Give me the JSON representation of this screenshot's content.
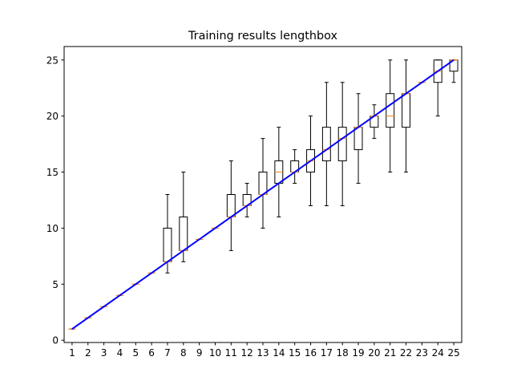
{
  "chart_data": {
    "type": "box",
    "title": "Training results lengthbox",
    "xlabel": "",
    "ylabel": "",
    "categories": [
      "1",
      "2",
      "3",
      "4",
      "5",
      "6",
      "7",
      "8",
      "9",
      "10",
      "11",
      "12",
      "13",
      "14",
      "15",
      "16",
      "17",
      "18",
      "19",
      "20",
      "21",
      "22",
      "23",
      "24",
      "25"
    ],
    "y_ticks": [
      0,
      5,
      10,
      15,
      20,
      25
    ],
    "ylim": [
      -0.2,
      26.2
    ],
    "grid": false,
    "boxes": [
      {
        "x": 1,
        "whislo": 1,
        "q1": 1,
        "med": 1,
        "q3": 1,
        "whishi": 1
      },
      {
        "x": 2,
        "whislo": 2,
        "q1": 2,
        "med": 2,
        "q3": 2,
        "whishi": 2
      },
      {
        "x": 3,
        "whislo": 3,
        "q1": 3,
        "med": 3,
        "q3": 3,
        "whishi": 3
      },
      {
        "x": 4,
        "whislo": 4,
        "q1": 4,
        "med": 4,
        "q3": 4,
        "whishi": 4
      },
      {
        "x": 5,
        "whislo": 5,
        "q1": 5,
        "med": 5,
        "q3": 5,
        "whishi": 5
      },
      {
        "x": 6,
        "whislo": 6,
        "q1": 6,
        "med": 6,
        "q3": 6,
        "whishi": 6
      },
      {
        "x": 7,
        "whislo": 6,
        "q1": 7,
        "med": 7,
        "q3": 10,
        "whishi": 13
      },
      {
        "x": 8,
        "whislo": 7,
        "q1": 8,
        "med": 8,
        "q3": 11,
        "whishi": 15
      },
      {
        "x": 9,
        "whislo": 9,
        "q1": 9,
        "med": 9,
        "q3": 9,
        "whishi": 9
      },
      {
        "x": 10,
        "whislo": 10,
        "q1": 10,
        "med": 10,
        "q3": 10,
        "whishi": 10
      },
      {
        "x": 11,
        "whislo": 8,
        "q1": 11,
        "med": 11,
        "q3": 13,
        "whishi": 16
      },
      {
        "x": 12,
        "whislo": 11,
        "q1": 12,
        "med": 12,
        "q3": 13,
        "whishi": 14
      },
      {
        "x": 13,
        "whislo": 10,
        "q1": 13,
        "med": 13,
        "q3": 15,
        "whishi": 18
      },
      {
        "x": 14,
        "whislo": 11,
        "q1": 14,
        "med": 15,
        "q3": 16,
        "whishi": 19
      },
      {
        "x": 15,
        "whislo": 14,
        "q1": 15,
        "med": 15,
        "q3": 16,
        "whishi": 17
      },
      {
        "x": 16,
        "whislo": 12,
        "q1": 15,
        "med": 16,
        "q3": 17,
        "whishi": 20
      },
      {
        "x": 17,
        "whislo": 12,
        "q1": 16,
        "med": 17,
        "q3": 19,
        "whishi": 23
      },
      {
        "x": 18,
        "whislo": 12,
        "q1": 16,
        "med": 18,
        "q3": 19,
        "whishi": 23
      },
      {
        "x": 19,
        "whislo": 14,
        "q1": 17,
        "med": 19,
        "q3": 19,
        "whishi": 22
      },
      {
        "x": 20,
        "whislo": 18,
        "q1": 19,
        "med": 20,
        "q3": 20,
        "whishi": 21
      },
      {
        "x": 21,
        "whislo": 15,
        "q1": 19,
        "med": 20,
        "q3": 22,
        "whishi": 25
      },
      {
        "x": 22,
        "whislo": 15,
        "q1": 19,
        "med": 22,
        "q3": 22,
        "whishi": 25
      },
      {
        "x": 23,
        "whislo": 23,
        "q1": 23,
        "med": 23,
        "q3": 23,
        "whishi": 23
      },
      {
        "x": 24,
        "whislo": 20,
        "q1": 23,
        "med": 24,
        "q3": 25,
        "whishi": 25
      },
      {
        "x": 25,
        "whislo": 23,
        "q1": 24,
        "med": 25,
        "q3": 25,
        "whishi": 25
      }
    ],
    "reference_line": {
      "x": [
        1,
        25
      ],
      "y": [
        1,
        25
      ]
    },
    "colors": {
      "box": "#000000",
      "median": "#ff7f0e",
      "reference_line": "#0000ff"
    }
  }
}
